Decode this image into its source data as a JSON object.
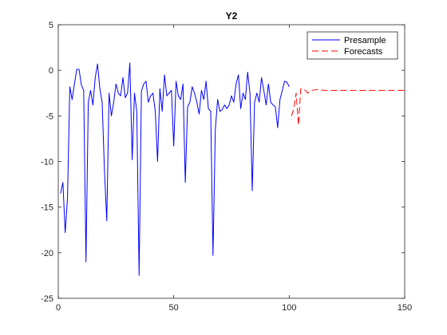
{
  "chart_data": {
    "type": "line",
    "title": "Y2",
    "xlabel": "",
    "ylabel": "",
    "xlim": [
      0,
      150
    ],
    "ylim": [
      -25,
      5
    ],
    "xticks": [
      0,
      50,
      100,
      150
    ],
    "yticks": [
      5,
      0,
      -5,
      -10,
      -15,
      -20,
      -25
    ],
    "grid": false,
    "legend_position": "top-right",
    "series": [
      {
        "name": "Presample",
        "color": "#0000ff",
        "style": "solid",
        "x": [
          1,
          2,
          3,
          4,
          5,
          6,
          7,
          8,
          9,
          10,
          11,
          12,
          13,
          14,
          15,
          16,
          17,
          18,
          19,
          20,
          21,
          22,
          23,
          24,
          25,
          26,
          27,
          28,
          29,
          30,
          31,
          32,
          33,
          34,
          35,
          36,
          37,
          38,
          39,
          40,
          41,
          42,
          43,
          44,
          45,
          46,
          47,
          48,
          49,
          50,
          51,
          52,
          53,
          54,
          55,
          56,
          57,
          58,
          59,
          60,
          61,
          62,
          63,
          64,
          65,
          66,
          67,
          68,
          69,
          70,
          71,
          72,
          73,
          74,
          75,
          76,
          77,
          78,
          79,
          80,
          81,
          82,
          83,
          84,
          85,
          86,
          87,
          88,
          89,
          90,
          91,
          92,
          93,
          94,
          95,
          96,
          97,
          98,
          99,
          100
        ],
        "y": [
          -13.5,
          -12.3,
          -17.8,
          -14,
          -1.8,
          -3.2,
          -1.5,
          0.1,
          0.1,
          -1.6,
          -2.2,
          -21,
          -3.5,
          -2.2,
          -3.8,
          -0.8,
          0.7,
          -2,
          -3.5,
          -11,
          -16.5,
          -2.5,
          -5,
          -3.5,
          -1.5,
          -2.5,
          -2.8,
          -0.8,
          -3,
          -2.5,
          0.8,
          -9.8,
          -2.5,
          -4.5,
          -22.5,
          -2.3,
          -1.5,
          -1.2,
          -3.5,
          -2.8,
          -2.5,
          -4.5,
          -10,
          -2,
          -4.5,
          -0.5,
          -2.8,
          -2.5,
          -2.2,
          -8.3,
          -1.2,
          -2.8,
          -3.2,
          -1.5,
          -12.3,
          -4,
          -3.5,
          -1.8,
          -2.5,
          -3.5,
          -4.8,
          -2.2,
          -3.2,
          -1.2,
          -4.2,
          -4.5,
          -20.3,
          -6.5,
          -3.2,
          -4.5,
          -4.3,
          -3.8,
          -4.2,
          -3.8,
          -2.8,
          -3.5,
          -1.5,
          -0.5,
          -4.2,
          -2.5,
          -3.2,
          -0.2,
          -2.5,
          -13.2,
          -3.5,
          -2.5,
          -3.5,
          -0.8,
          -2.2,
          -3.8,
          -1.5,
          -3.5,
          -3.8,
          -4,
          -6.3,
          -3.2,
          -2.2,
          -1.2,
          -1.3,
          -1.8
        ]
      },
      {
        "name": "Forecasts",
        "color": "#ff0000",
        "style": "dashed",
        "x": [
          101,
          102,
          103,
          104,
          105,
          106,
          107,
          108,
          109,
          110,
          112,
          115,
          120,
          125,
          130,
          135,
          140,
          145,
          150
        ],
        "y": [
          -5,
          -4.2,
          -2.5,
          -6,
          -2,
          -2.1,
          -2.2,
          -2.5,
          -2.3,
          -2.2,
          -2.1,
          -2.2,
          -2.2,
          -2.2,
          -2.2,
          -2.2,
          -2.2,
          -2.2,
          -2.2
        ]
      }
    ]
  }
}
